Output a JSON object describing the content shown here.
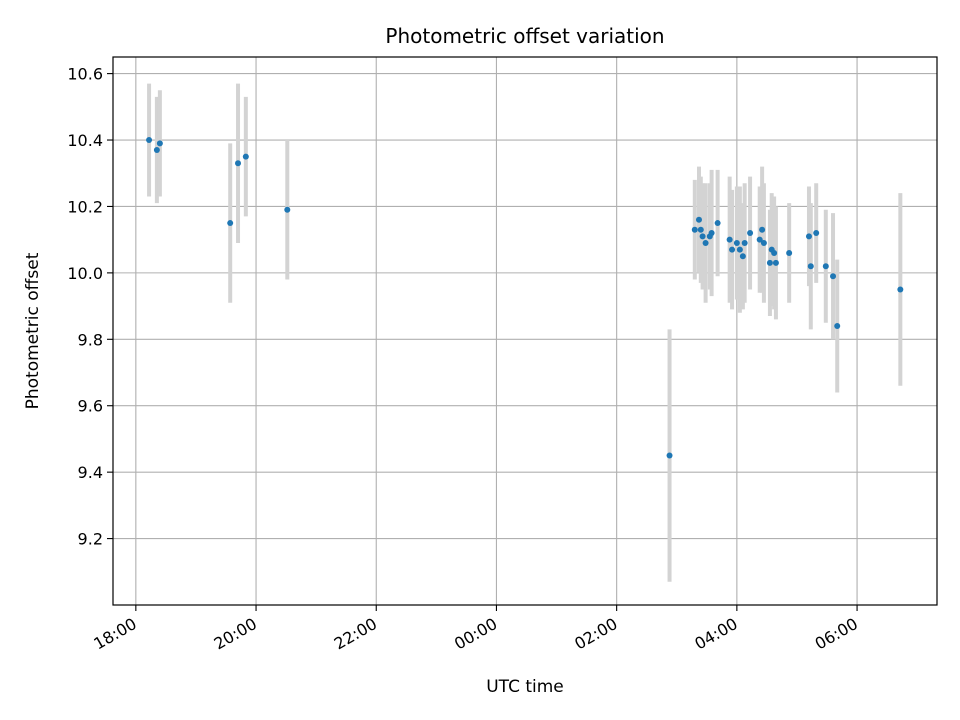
{
  "chart_data": {
    "type": "scatter",
    "title": "Photometric offset variation",
    "xlabel": "UTC time",
    "ylabel": "Photometric offset",
    "x_unit": "hours (UTC, continuing past midnight)",
    "xlim": [
      17.62,
      31.33
    ],
    "ylim": [
      9.0,
      10.65
    ],
    "grid": true,
    "x_ticks": [
      {
        "value": 18,
        "label": "18:00"
      },
      {
        "value": 20,
        "label": "20:00"
      },
      {
        "value": 22,
        "label": "22:00"
      },
      {
        "value": 24,
        "label": "00:00"
      },
      {
        "value": 26,
        "label": "02:00"
      },
      {
        "value": 28,
        "label": "04:00"
      },
      {
        "value": 30,
        "label": "06:00"
      }
    ],
    "y_ticks": [
      {
        "value": 9.2,
        "label": "9.2"
      },
      {
        "value": 9.4,
        "label": "9.4"
      },
      {
        "value": 9.6,
        "label": "9.6"
      },
      {
        "value": 9.8,
        "label": "9.8"
      },
      {
        "value": 10.0,
        "label": "10.0"
      },
      {
        "value": 10.2,
        "label": "10.2"
      },
      {
        "value": 10.4,
        "label": "10.4"
      },
      {
        "value": 10.6,
        "label": "10.6"
      }
    ],
    "colors": {
      "point": "#1f77b4",
      "errorbar": "#d3d3d3",
      "grid": "#b0b0b0"
    },
    "points": [
      {
        "x": 18.22,
        "y": 10.4,
        "err": 0.17
      },
      {
        "x": 18.35,
        "y": 10.37,
        "err": 0.16
      },
      {
        "x": 18.4,
        "y": 10.39,
        "err": 0.16
      },
      {
        "x": 19.57,
        "y": 10.15,
        "err": 0.24
      },
      {
        "x": 19.7,
        "y": 10.33,
        "err": 0.24
      },
      {
        "x": 19.83,
        "y": 10.35,
        "err": 0.18
      },
      {
        "x": 20.52,
        "y": 10.19,
        "err": 0.21
      },
      {
        "x": 26.88,
        "y": 9.45,
        "err": 0.38
      },
      {
        "x": 27.3,
        "y": 10.13,
        "err": 0.15
      },
      {
        "x": 27.37,
        "y": 10.16,
        "err": 0.16
      },
      {
        "x": 27.4,
        "y": 10.13,
        "err": 0.16
      },
      {
        "x": 27.43,
        "y": 10.11,
        "err": 0.16
      },
      {
        "x": 27.48,
        "y": 10.09,
        "err": 0.18
      },
      {
        "x": 27.55,
        "y": 10.11,
        "err": 0.16
      },
      {
        "x": 27.58,
        "y": 10.12,
        "err": 0.19
      },
      {
        "x": 27.68,
        "y": 10.15,
        "err": 0.16
      },
      {
        "x": 27.88,
        "y": 10.1,
        "err": 0.19
      },
      {
        "x": 27.92,
        "y": 10.07,
        "err": 0.18
      },
      {
        "x": 28.0,
        "y": 10.09,
        "err": 0.17
      },
      {
        "x": 28.05,
        "y": 10.07,
        "err": 0.19
      },
      {
        "x": 28.1,
        "y": 10.05,
        "err": 0.16
      },
      {
        "x": 28.13,
        "y": 10.09,
        "err": 0.18
      },
      {
        "x": 28.22,
        "y": 10.12,
        "err": 0.17
      },
      {
        "x": 28.38,
        "y": 10.1,
        "err": 0.16
      },
      {
        "x": 28.42,
        "y": 10.13,
        "err": 0.19
      },
      {
        "x": 28.45,
        "y": 10.09,
        "err": 0.18
      },
      {
        "x": 28.55,
        "y": 10.03,
        "err": 0.16
      },
      {
        "x": 28.58,
        "y": 10.07,
        "err": 0.17
      },
      {
        "x": 28.62,
        "y": 10.06,
        "err": 0.17
      },
      {
        "x": 28.65,
        "y": 10.03,
        "err": 0.17
      },
      {
        "x": 28.87,
        "y": 10.06,
        "err": 0.15
      },
      {
        "x": 29.2,
        "y": 10.11,
        "err": 0.15
      },
      {
        "x": 29.23,
        "y": 10.02,
        "err": 0.19
      },
      {
        "x": 29.32,
        "y": 10.12,
        "err": 0.15
      },
      {
        "x": 29.48,
        "y": 10.02,
        "err": 0.17
      },
      {
        "x": 29.6,
        "y": 9.99,
        "err": 0.19
      },
      {
        "x": 29.67,
        "y": 9.84,
        "err": 0.2
      },
      {
        "x": 30.72,
        "y": 9.95,
        "err": 0.29
      }
    ]
  }
}
